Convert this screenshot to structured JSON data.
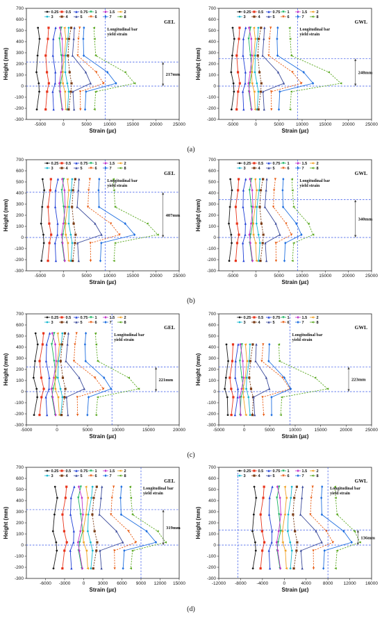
{
  "figure": {
    "legend_labels": [
      "0.25",
      "0.5",
      "0.75",
      "1",
      "1.5",
      "2",
      "3",
      "4",
      "5",
      "6",
      "7",
      "8"
    ],
    "series_colors": [
      "#1a1a1a",
      "#e8331a",
      "#1f3fd6",
      "#17b35e",
      "#c235c9",
      "#f0a020",
      "#18b8d0",
      "#7a3b14",
      "#3a4a9a",
      "#e85a10",
      "#1f6fe0",
      "#5aa820"
    ],
    "yield_label_line1": "Longitudinal bar",
    "yield_label_line2": "yield strain",
    "subfigure_labels": [
      "(a)",
      "(b)",
      "(c)",
      "(d)"
    ]
  },
  "chart_data": [
    {
      "type": "line",
      "id": "a-GEL",
      "panel_tag": "GEL",
      "row": 0,
      "col": 0,
      "xlabel": "Strain (με)",
      "ylabel": "Height (mm)",
      "xlim": [
        -8000,
        25000
      ],
      "ylim": [
        -300,
        700
      ],
      "xticks": [
        -5000,
        0,
        5000,
        10000,
        15000,
        20000,
        25000
      ],
      "yticks": [
        -300,
        -200,
        -100,
        0,
        100,
        200,
        300,
        400,
        500,
        600,
        700
      ],
      "yield_strain": 9000,
      "hline_upper": 217,
      "hline_lower": 0,
      "span_label": "217mm",
      "span_x": 21500,
      "heights": [
        525,
        425,
        275,
        125,
        25,
        -50,
        -210
      ],
      "spread": [
        -5500,
        -3500,
        -2000,
        -500
      ],
      "pos_base": [
        2000,
        3300,
        4500,
        6800
      ],
      "peak_series": [
        11000,
        15000
      ]
    },
    {
      "type": "line",
      "id": "a-GWL",
      "panel_tag": "GWL",
      "row": 0,
      "col": 1,
      "xlabel": "Strain (με)",
      "ylabel": "Height (mm)",
      "xlim": [
        -8000,
        25000
      ],
      "ylim": [
        -300,
        700
      ],
      "xticks": [
        -5000,
        0,
        5000,
        10000,
        15000,
        20000,
        25000
      ],
      "yticks": [
        -300,
        -200,
        -100,
        0,
        100,
        200,
        300,
        400,
        500,
        600,
        700
      ],
      "yield_strain": 9000,
      "hline_upper": 248,
      "hline_lower": 0,
      "span_label": "248mm",
      "span_x": 21500,
      "heights": [
        525,
        425,
        275,
        125,
        25,
        -50,
        -210
      ],
      "spread": [
        -5000,
        -3800,
        -2500,
        -1200
      ],
      "pos_base": [
        1500,
        3000,
        4800,
        7500
      ],
      "peak_series": [
        12000,
        18000
      ]
    },
    {
      "type": "line",
      "id": "b-GEL",
      "panel_tag": "GEL",
      "row": 1,
      "col": 0,
      "xlabel": "Strain (με)",
      "ylabel": "Height (mm)",
      "xlim": [
        -8000,
        25000
      ],
      "ylim": [
        -300,
        700
      ],
      "xticks": [
        -5000,
        0,
        5000,
        10000,
        15000,
        20000,
        25000
      ],
      "yticks": [
        -300,
        -200,
        -100,
        0,
        100,
        200,
        300,
        400,
        500,
        600,
        700
      ],
      "yield_strain": 9000,
      "hline_upper": 407,
      "hline_lower": 0,
      "span_label": "407mm",
      "span_x": 21500,
      "heights": [
        525,
        425,
        275,
        125,
        25,
        -50,
        -210
      ],
      "spread": [
        -4500,
        -3000,
        -1500,
        0
      ],
      "pos_base": [
        3000,
        5500,
        7800,
        11000
      ],
      "peak_series": [
        15000,
        20000
      ]
    },
    {
      "type": "line",
      "id": "b-GWL",
      "panel_tag": "GWL",
      "row": 1,
      "col": 1,
      "xlabel": "Strain (με)",
      "ylabel": "Height (mm)",
      "xlim": [
        -8000,
        25000
      ],
      "ylim": [
        -300,
        700
      ],
      "xticks": [
        -5000,
        0,
        5000,
        10000,
        15000,
        20000,
        25000
      ],
      "yticks": [
        -300,
        -200,
        -100,
        0,
        100,
        200,
        300,
        400,
        500,
        600,
        700
      ],
      "yield_strain": 9000,
      "hline_upper": 340,
      "hline_lower": 0,
      "span_label": "340mm",
      "span_x": 21500,
      "heights": [
        525,
        425,
        275,
        125,
        25,
        -50,
        -210
      ],
      "spread": [
        -5500,
        -4000,
        -2500,
        -1000
      ],
      "pos_base": [
        2000,
        4000,
        6000,
        8000
      ],
      "peak_series": [
        9500,
        12000
      ]
    },
    {
      "type": "line",
      "id": "c-GEL",
      "panel_tag": "GEL",
      "row": 2,
      "col": 0,
      "xlabel": "Strain (με)",
      "ylabel": "Height (mm)",
      "xlim": [
        -5000,
        20000
      ],
      "ylim": [
        -300,
        700
      ],
      "xticks": [
        -5000,
        0,
        5000,
        10000,
        15000,
        20000
      ],
      "yticks": [
        -300,
        -200,
        -100,
        0,
        100,
        200,
        300,
        400,
        500,
        600,
        700
      ],
      "yield_strain": 9000,
      "hline_upper": 221,
      "hline_lower": 0,
      "span_label": "221mm",
      "span_x": 16200,
      "heights": [
        525,
        425,
        275,
        125,
        25,
        -50,
        -210
      ],
      "spread": [
        -3500,
        -2500,
        -1500,
        -500
      ],
      "pos_base": [
        1500,
        3000,
        4800,
        6500
      ],
      "peak_series": [
        8500,
        13000
      ]
    },
    {
      "type": "line",
      "id": "c-GWL",
      "panel_tag": "GWL",
      "row": 2,
      "col": 1,
      "xlabel": "Strain (με)",
      "ylabel": "Height (mm)",
      "xlim": [
        -5000,
        25000
      ],
      "ylim": [
        -300,
        700
      ],
      "xticks": [
        -5000,
        0,
        5000,
        10000,
        15000,
        20000,
        25000
      ],
      "yticks": [
        -300,
        -200,
        -100,
        0,
        100,
        200,
        300,
        400,
        500,
        600,
        700
      ],
      "yield_strain": 9000,
      "hline_upper": 223,
      "hline_lower": 0,
      "span_label": "223mm",
      "span_x": 20500,
      "heights": [
        425,
        275,
        125,
        25,
        -50,
        -210
      ],
      "spread": [
        -3500,
        -2500,
        -1500,
        -500
      ],
      "pos_base": [
        2000,
        3500,
        5000,
        7000
      ],
      "peak_series": [
        9000,
        16000
      ]
    },
    {
      "type": "line",
      "id": "d-GEL",
      "panel_tag": "GEL",
      "row": 3,
      "col": 0,
      "xlabel": "Strain (με)",
      "ylabel": "Height (mm)",
      "xlim": [
        -9000,
        15000
      ],
      "ylim": [
        -300,
        700
      ],
      "xticks": [
        -6000,
        -3000,
        0,
        3000,
        6000,
        9000,
        12000,
        15000
      ],
      "yticks": [
        -300,
        -200,
        -100,
        0,
        100,
        200,
        300,
        400,
        500,
        600,
        700
      ],
      "yield_strain": 9000,
      "hline_upper": 319,
      "hline_lower": 0,
      "span_label": "319mm",
      "span_x": 12500,
      "heights": [
        525,
        425,
        275,
        125,
        25,
        -50,
        -210
      ],
      "spread": [
        -4500,
        -3000,
        -1800,
        -500
      ],
      "pos_base": [
        2500,
        4500,
        6000,
        7500
      ],
      "peak_series": [
        11000,
        12500
      ]
    },
    {
      "type": "line",
      "id": "d-GWL",
      "panel_tag": "GWL",
      "row": 3,
      "col": 1,
      "xlabel": "Strain (με)",
      "ylabel": "Height (mm)",
      "xlim": [
        -12000,
        16000
      ],
      "ylim": [
        -300,
        700
      ],
      "xticks": [
        -12000,
        -8000,
        -4000,
        0,
        4000,
        8000,
        12000,
        16000
      ],
      "yticks": [
        -300,
        -200,
        -100,
        0,
        100,
        200,
        300,
        400,
        500,
        600,
        700
      ],
      "yield_strain": 8000,
      "extra_vline": -8500,
      "hline_upper": 136,
      "hline_lower": 0,
      "span_label": "136mm",
      "span_x": 13500,
      "heights": [
        525,
        425,
        275,
        125,
        25,
        -50,
        -210
      ],
      "spread": [
        -5500,
        -4000,
        -2500,
        -1000
      ],
      "pos_base": [
        3000,
        5000,
        7000,
        9500
      ],
      "peak_series": [
        12000,
        13500
      ]
    }
  ]
}
